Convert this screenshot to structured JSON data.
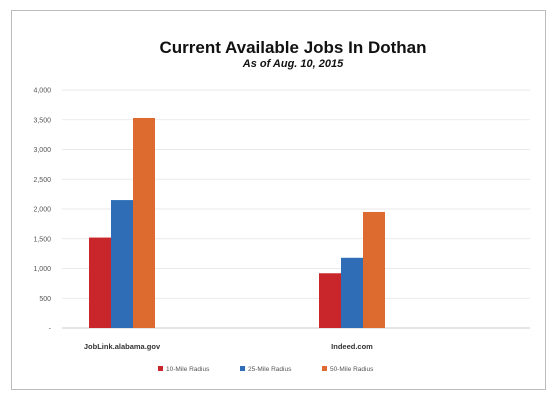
{
  "chart_data": {
    "type": "bar",
    "title": "Current Available Jobs In Dothan",
    "subtitle": "As of Aug. 10, 2015",
    "categories": [
      "JobLink.alabama.gov",
      "Indeed.com"
    ],
    "series": [
      {
        "name": "10-Mile Radius",
        "color": "#c9262b",
        "values": [
          1520,
          920
        ]
      },
      {
        "name": "25-Mile Radius",
        "color": "#2f6eb7",
        "values": [
          2150,
          1180
        ]
      },
      {
        "name": "50-Mile Radius",
        "color": "#dd6a2e",
        "values": [
          3530,
          1950
        ]
      }
    ],
    "ylim": [
      0,
      4000
    ],
    "yticks": [
      0,
      500,
      1000,
      1500,
      2000,
      2500,
      3000,
      3500,
      4000
    ],
    "ytick_labels": [
      "-",
      "500",
      "1,000",
      "1,500",
      "2,000",
      "2,500",
      "3,000",
      "3,500",
      "4,000"
    ],
    "grid": true,
    "legend": "bottom"
  }
}
